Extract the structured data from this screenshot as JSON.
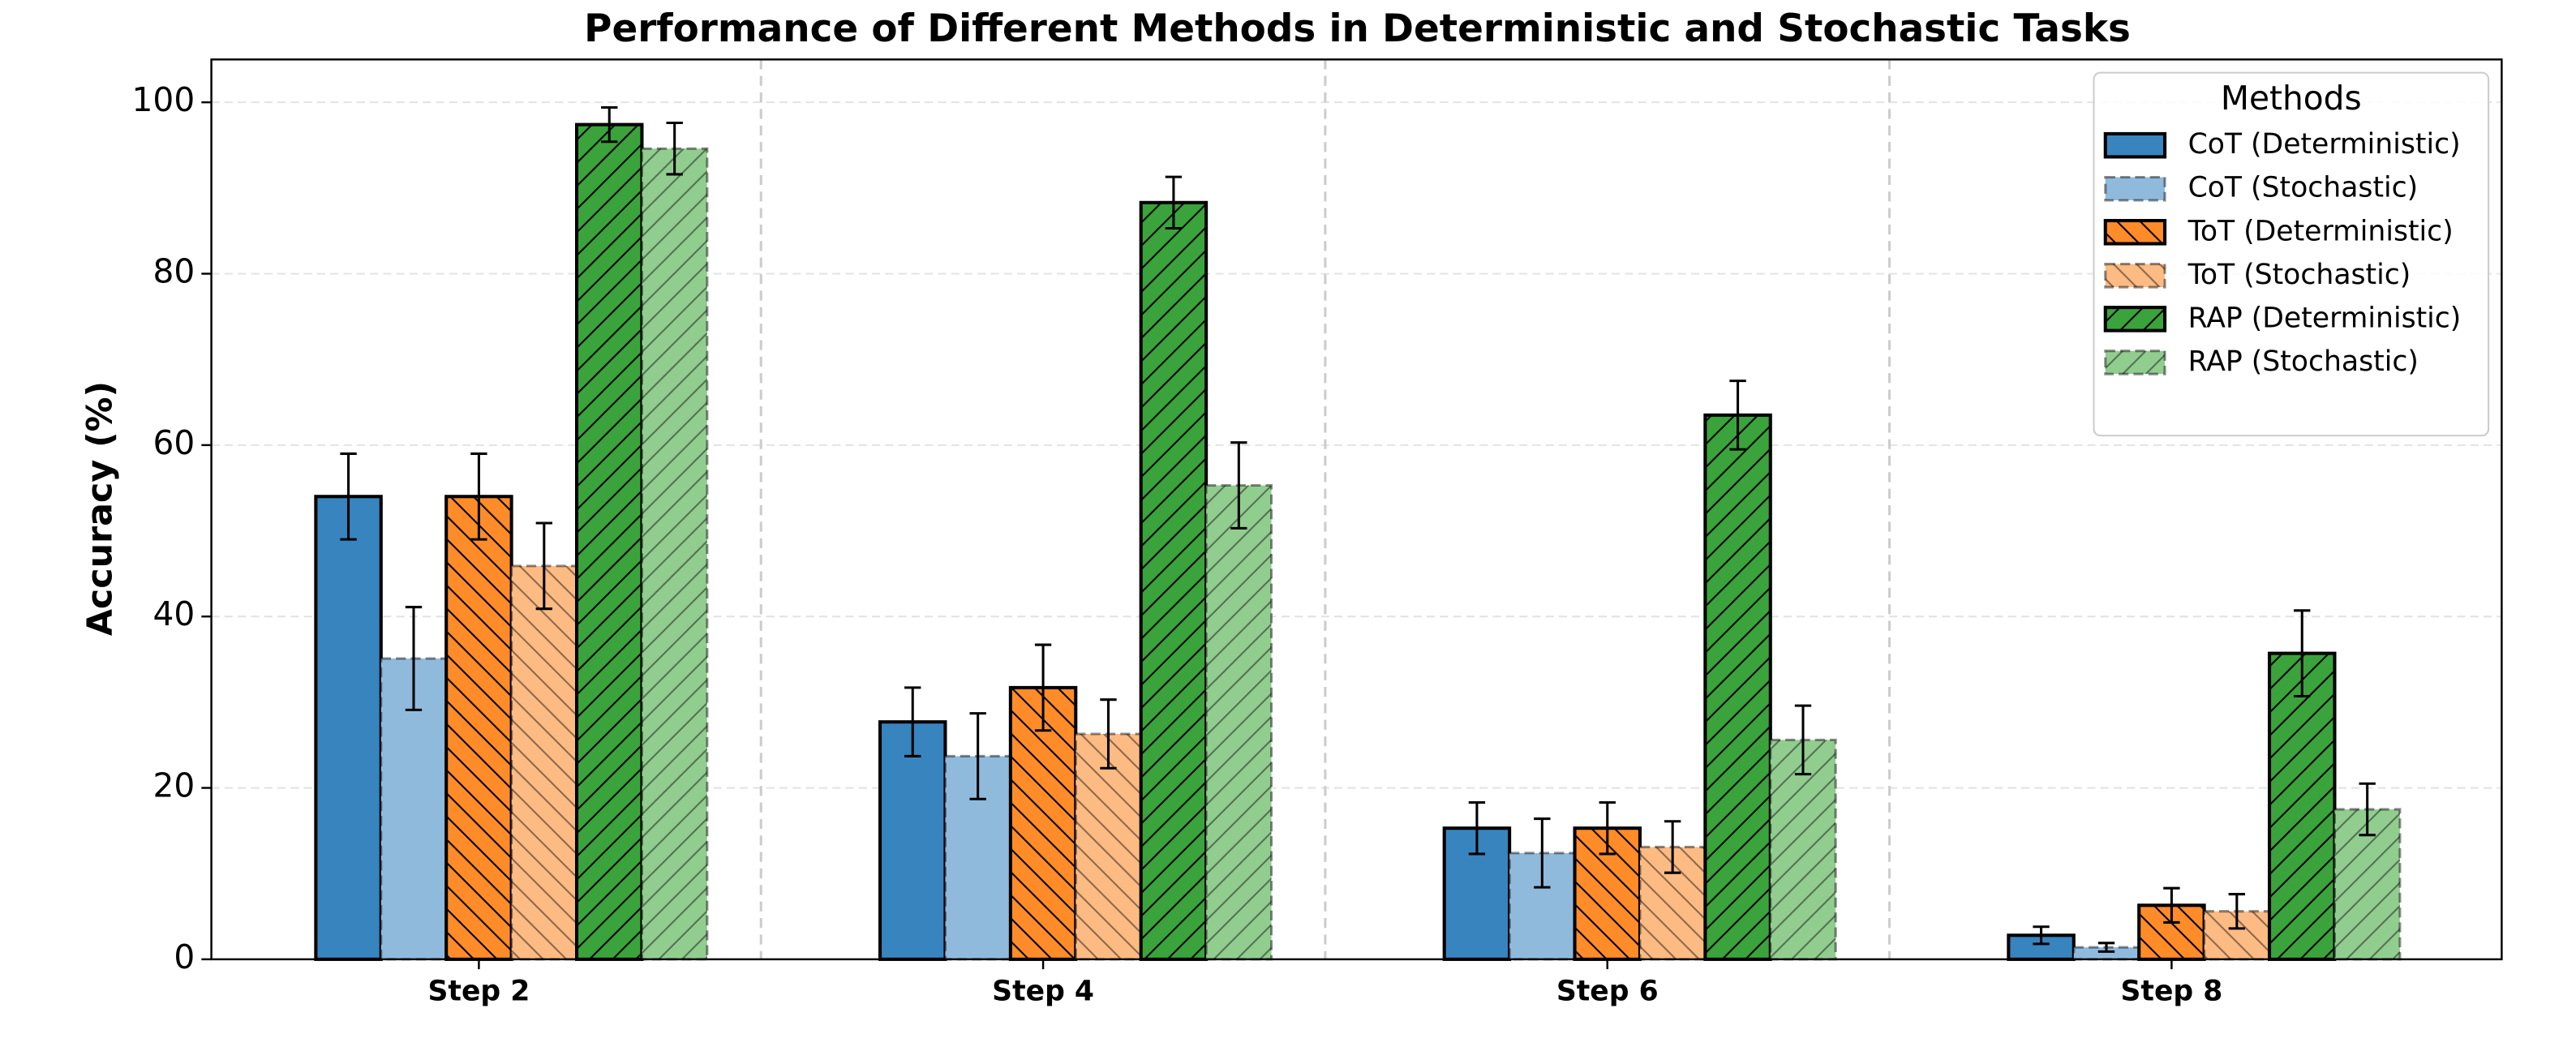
{
  "chart_data": {
    "type": "bar",
    "title": "Performance of Different Methods in Deterministic and Stochastic Tasks",
    "y_label": "Accuracy (%)",
    "categories": [
      "Step 2",
      "Step 4",
      "Step 6",
      "Step 8"
    ],
    "ylim": [
      0,
      105
    ],
    "yticks": [
      0,
      20,
      40,
      60,
      80,
      100
    ],
    "grid": true,
    "legend_title": "Methods",
    "legend": "upper right",
    "series": [
      {
        "name": "CoT (Deterministic)",
        "color": "#3784bf",
        "hatch": "none",
        "linestyle": "solid",
        "values": [
          54,
          27.7,
          15.3,
          2.8
        ],
        "errors": [
          5,
          4,
          3,
          1
        ]
      },
      {
        "name": "CoT (Stochastic)",
        "color": "#90badc",
        "hatch": "none",
        "linestyle": "dashed",
        "values": [
          35.1,
          23.7,
          12.4,
          1.4
        ],
        "errors": [
          6,
          5,
          4,
          0.5
        ]
      },
      {
        "name": "ToT (Deterministic)",
        "color": "#ff8c29",
        "hatch": "backslash",
        "linestyle": "solid",
        "values": [
          54,
          31.7,
          15.3,
          6.3
        ],
        "errors": [
          5,
          5,
          3,
          2
        ]
      },
      {
        "name": "ToT (Stochastic)",
        "color": "#fdbb84",
        "hatch": "backslash",
        "linestyle": "dashed",
        "values": [
          45.9,
          26.3,
          13.1,
          5.6
        ],
        "errors": [
          5,
          4,
          3,
          2
        ]
      },
      {
        "name": "RAP (Deterministic)",
        "color": "#3ba33b",
        "hatch": "slash",
        "linestyle": "solid",
        "values": [
          97.4,
          88.3,
          63.5,
          35.7
        ],
        "errors": [
          2,
          3,
          4,
          5
        ]
      },
      {
        "name": "RAP (Stochastic)",
        "color": "#92cd90",
        "hatch": "slash",
        "linestyle": "dashed",
        "values": [
          94.6,
          55.3,
          25.6,
          17.5
        ],
        "errors": [
          3,
          5,
          4,
          3
        ]
      }
    ]
  }
}
